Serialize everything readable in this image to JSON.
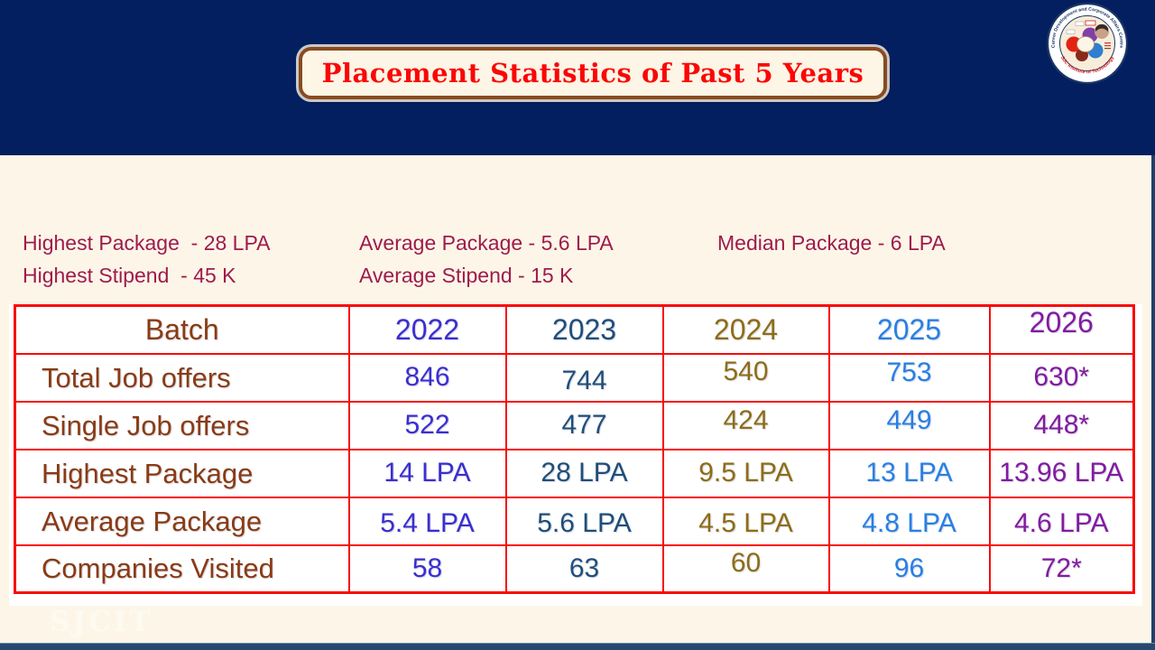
{
  "page": {
    "bg": "#fdf6e8",
    "header_bg": "#041f5f"
  },
  "title": {
    "text": "Placement Statistics of Past 5 Years",
    "color": "#fb0606",
    "box_bg": "#fdf5e5",
    "box_border": "#8a4a1f"
  },
  "logo": {
    "top_arc": "Career Development and Corporate Affairs Centre",
    "bottom_arc": "SJC Institute of Technology"
  },
  "summary": {
    "color": "#9e1b4d",
    "line1": [
      "Highest Package  - 28 LPA",
      "Average Package - 5.6 LPA",
      "Median Package - 6 LPA"
    ],
    "line2": [
      "Highest Stipend  - 45 K",
      "Average Stipend - 15 K"
    ]
  },
  "table": {
    "border_color": "#f80b0b",
    "label_color": "#8a3b13",
    "header_label": "Batch",
    "years": [
      "2022",
      "2023",
      "2024",
      "2025",
      "2026"
    ],
    "year_colors": [
      "#3a2ed0",
      "#1f4e79",
      "#8d6d15",
      "#2780e3",
      "#821ba0"
    ],
    "rows": [
      {
        "label": "Total Job offers",
        "values": [
          "846",
          "744",
          "540",
          "753",
          "630*"
        ]
      },
      {
        "label": "Single Job offers",
        "values": [
          "522",
          "477",
          "424",
          "449",
          "448*"
        ]
      },
      {
        "label": "Highest Package",
        "values": [
          "14 LPA",
          "28 LPA",
          "9.5 LPA",
          "13 LPA",
          "13.96 LPA"
        ]
      },
      {
        "label": "Average Package",
        "values": [
          "5.4 LPA",
          "5.6 LPA",
          "4.5 LPA",
          "4.8 LPA",
          "4.6 LPA"
        ]
      },
      {
        "label": "Companies Visited",
        "values": [
          "58",
          "63",
          "60",
          "96",
          "72*"
        ]
      }
    ]
  },
  "watermark": "SJCIT"
}
